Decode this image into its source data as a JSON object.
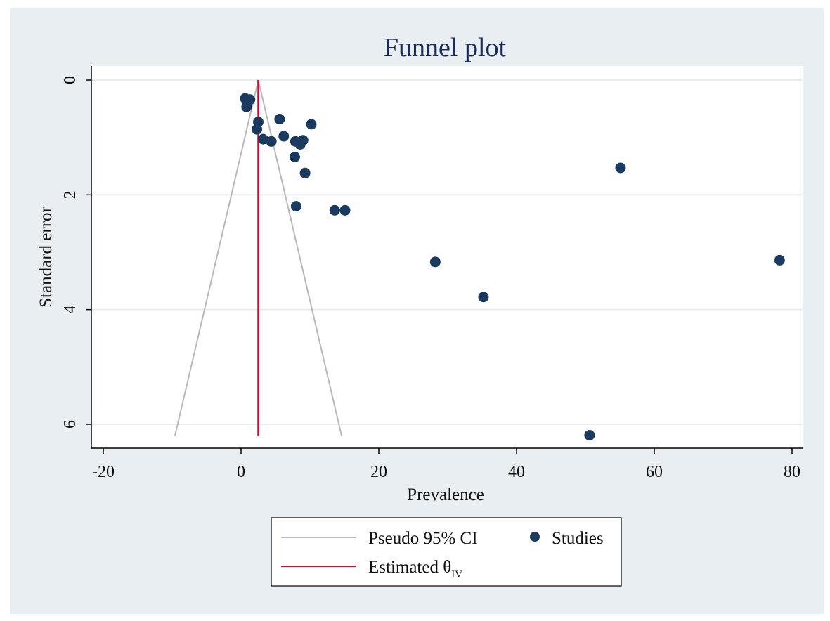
{
  "colors": {
    "outer_background": "#e8eef2",
    "plot_background": "#ffffff",
    "grid": "#e6ecef",
    "ci_line": "#b9b9b9",
    "estimate_line": "#c8102e",
    "marker": "#1a3a5f"
  },
  "chart_data": {
    "type": "scatter",
    "title": "Funnel plot",
    "xlabel": "Prevalence",
    "ylabel": "Standard error",
    "xlim": [
      -22,
      82
    ],
    "ylim": [
      0,
      6.3
    ],
    "y_inverted": true,
    "x_ticks": [
      -20,
      0,
      20,
      40,
      60,
      80
    ],
    "y_ticks": [
      0,
      2,
      4,
      6
    ],
    "grid": "horizontal",
    "legend_position": "bottom",
    "series": [
      {
        "name": "Studies",
        "marker": "circle",
        "points": [
          {
            "x": 0.6,
            "y": 0.32
          },
          {
            "x": 1.3,
            "y": 0.34
          },
          {
            "x": 0.9,
            "y": 0.4
          },
          {
            "x": 0.8,
            "y": 0.47
          },
          {
            "x": 2.5,
            "y": 0.73
          },
          {
            "x": 5.6,
            "y": 0.68
          },
          {
            "x": 10.2,
            "y": 0.77
          },
          {
            "x": 2.3,
            "y": 0.86
          },
          {
            "x": 6.2,
            "y": 0.98
          },
          {
            "x": 3.2,
            "y": 1.03
          },
          {
            "x": 4.4,
            "y": 1.07
          },
          {
            "x": 7.9,
            "y": 1.07
          },
          {
            "x": 8.6,
            "y": 1.12
          },
          {
            "x": 9.0,
            "y": 1.05
          },
          {
            "x": 7.8,
            "y": 1.34
          },
          {
            "x": 9.3,
            "y": 1.62
          },
          {
            "x": 55.1,
            "y": 1.53
          },
          {
            "x": 8.0,
            "y": 2.2
          },
          {
            "x": 13.6,
            "y": 2.27
          },
          {
            "x": 15.1,
            "y": 2.27
          },
          {
            "x": 28.2,
            "y": 3.17
          },
          {
            "x": 78.2,
            "y": 3.14
          },
          {
            "x": 35.2,
            "y": 3.78
          },
          {
            "x": 50.6,
            "y": 6.19
          }
        ]
      }
    ],
    "estimate": {
      "x": 2.5
    },
    "pseudo_ci": {
      "apex": {
        "x": 2.5,
        "y": 0
      },
      "bottom_y": 6.2,
      "bottom_left_x": -9.6,
      "bottom_right_x": 14.6
    },
    "legend": {
      "ci_label": "Pseudo 95% CI",
      "studies_label": "Studies",
      "estimate_label": "Estimated θ",
      "estimate_subscript": "IV"
    }
  }
}
